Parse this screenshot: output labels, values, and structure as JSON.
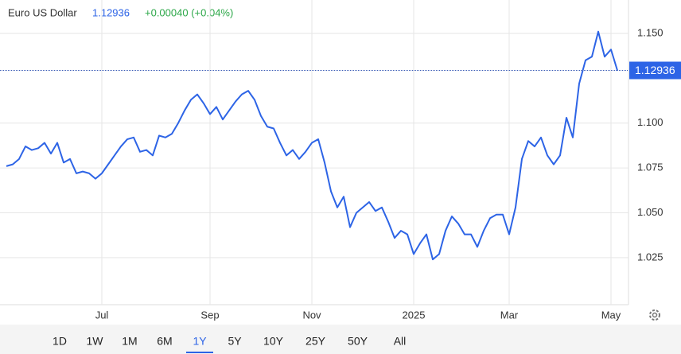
{
  "chart_data": {
    "type": "line",
    "title": "Euro US Dollar",
    "last_price": 1.12936,
    "change": "+0.00040 (+0.04%)",
    "color": "#2d64e6",
    "categories": [
      null,
      null,
      null,
      null,
      null,
      null,
      null,
      null,
      null,
      null,
      null,
      null,
      null,
      null,
      null,
      "Jul",
      null,
      null,
      null,
      null,
      null,
      null,
      null,
      null,
      null,
      null,
      null,
      null,
      null,
      null,
      null,
      null,
      "Sep",
      null,
      null,
      null,
      null,
      null,
      null,
      null,
      null,
      null,
      null,
      null,
      null,
      null,
      null,
      null,
      "Nov",
      null,
      null,
      null,
      null,
      null,
      null,
      null,
      null,
      null,
      null,
      null,
      null,
      null,
      null,
      null,
      "2025",
      null,
      null,
      null,
      null,
      null,
      null,
      null,
      null,
      null,
      null,
      null,
      null,
      null,
      null,
      "Mar",
      null,
      null,
      null,
      null,
      null,
      null,
      null,
      null,
      null,
      null,
      null,
      null,
      null,
      null,
      null,
      "May",
      null
    ],
    "values": [
      1.076,
      1.077,
      1.08,
      1.087,
      1.085,
      1.086,
      1.089,
      1.083,
      1.089,
      1.078,
      1.08,
      1.072,
      1.073,
      1.072,
      1.069,
      1.072,
      1.077,
      1.082,
      1.087,
      1.091,
      1.092,
      1.084,
      1.085,
      1.082,
      1.093,
      1.092,
      1.094,
      1.1,
      1.107,
      1.113,
      1.116,
      1.111,
      1.105,
      1.109,
      1.102,
      1.107,
      1.112,
      1.116,
      1.118,
      1.113,
      1.104,
      1.098,
      1.097,
      1.089,
      1.082,
      1.085,
      1.08,
      1.084,
      1.089,
      1.091,
      1.078,
      1.062,
      1.053,
      1.059,
      1.042,
      1.05,
      1.053,
      1.056,
      1.051,
      1.053,
      1.045,
      1.036,
      1.04,
      1.038,
      1.027,
      1.033,
      1.038,
      1.024,
      1.027,
      1.04,
      1.048,
      1.044,
      1.038,
      1.038,
      1.031,
      1.04,
      1.047,
      1.049,
      1.049,
      1.038,
      1.053,
      1.08,
      1.09,
      1.087,
      1.092,
      1.082,
      1.077,
      1.082,
      1.103,
      1.092,
      1.122,
      1.135,
      1.137,
      1.151,
      1.137,
      1.141,
      1.12936
    ],
    "ylim": [
      0.9988,
      1.1686
    ],
    "yticks": [
      1.025,
      {
        "value": 1.05,
        "label": "1.050"
      },
      1.075,
      {
        "value": 1.1,
        "label": "1.100"
      },
      {
        "value": 1.15,
        "label": "1.150"
      }
    ],
    "grid": true,
    "ranges": [
      "1D",
      "1W",
      "1M",
      "6M",
      "1Y",
      "5Y",
      "10Y",
      "25Y",
      "50Y",
      "All"
    ],
    "active_range": "1Y"
  }
}
